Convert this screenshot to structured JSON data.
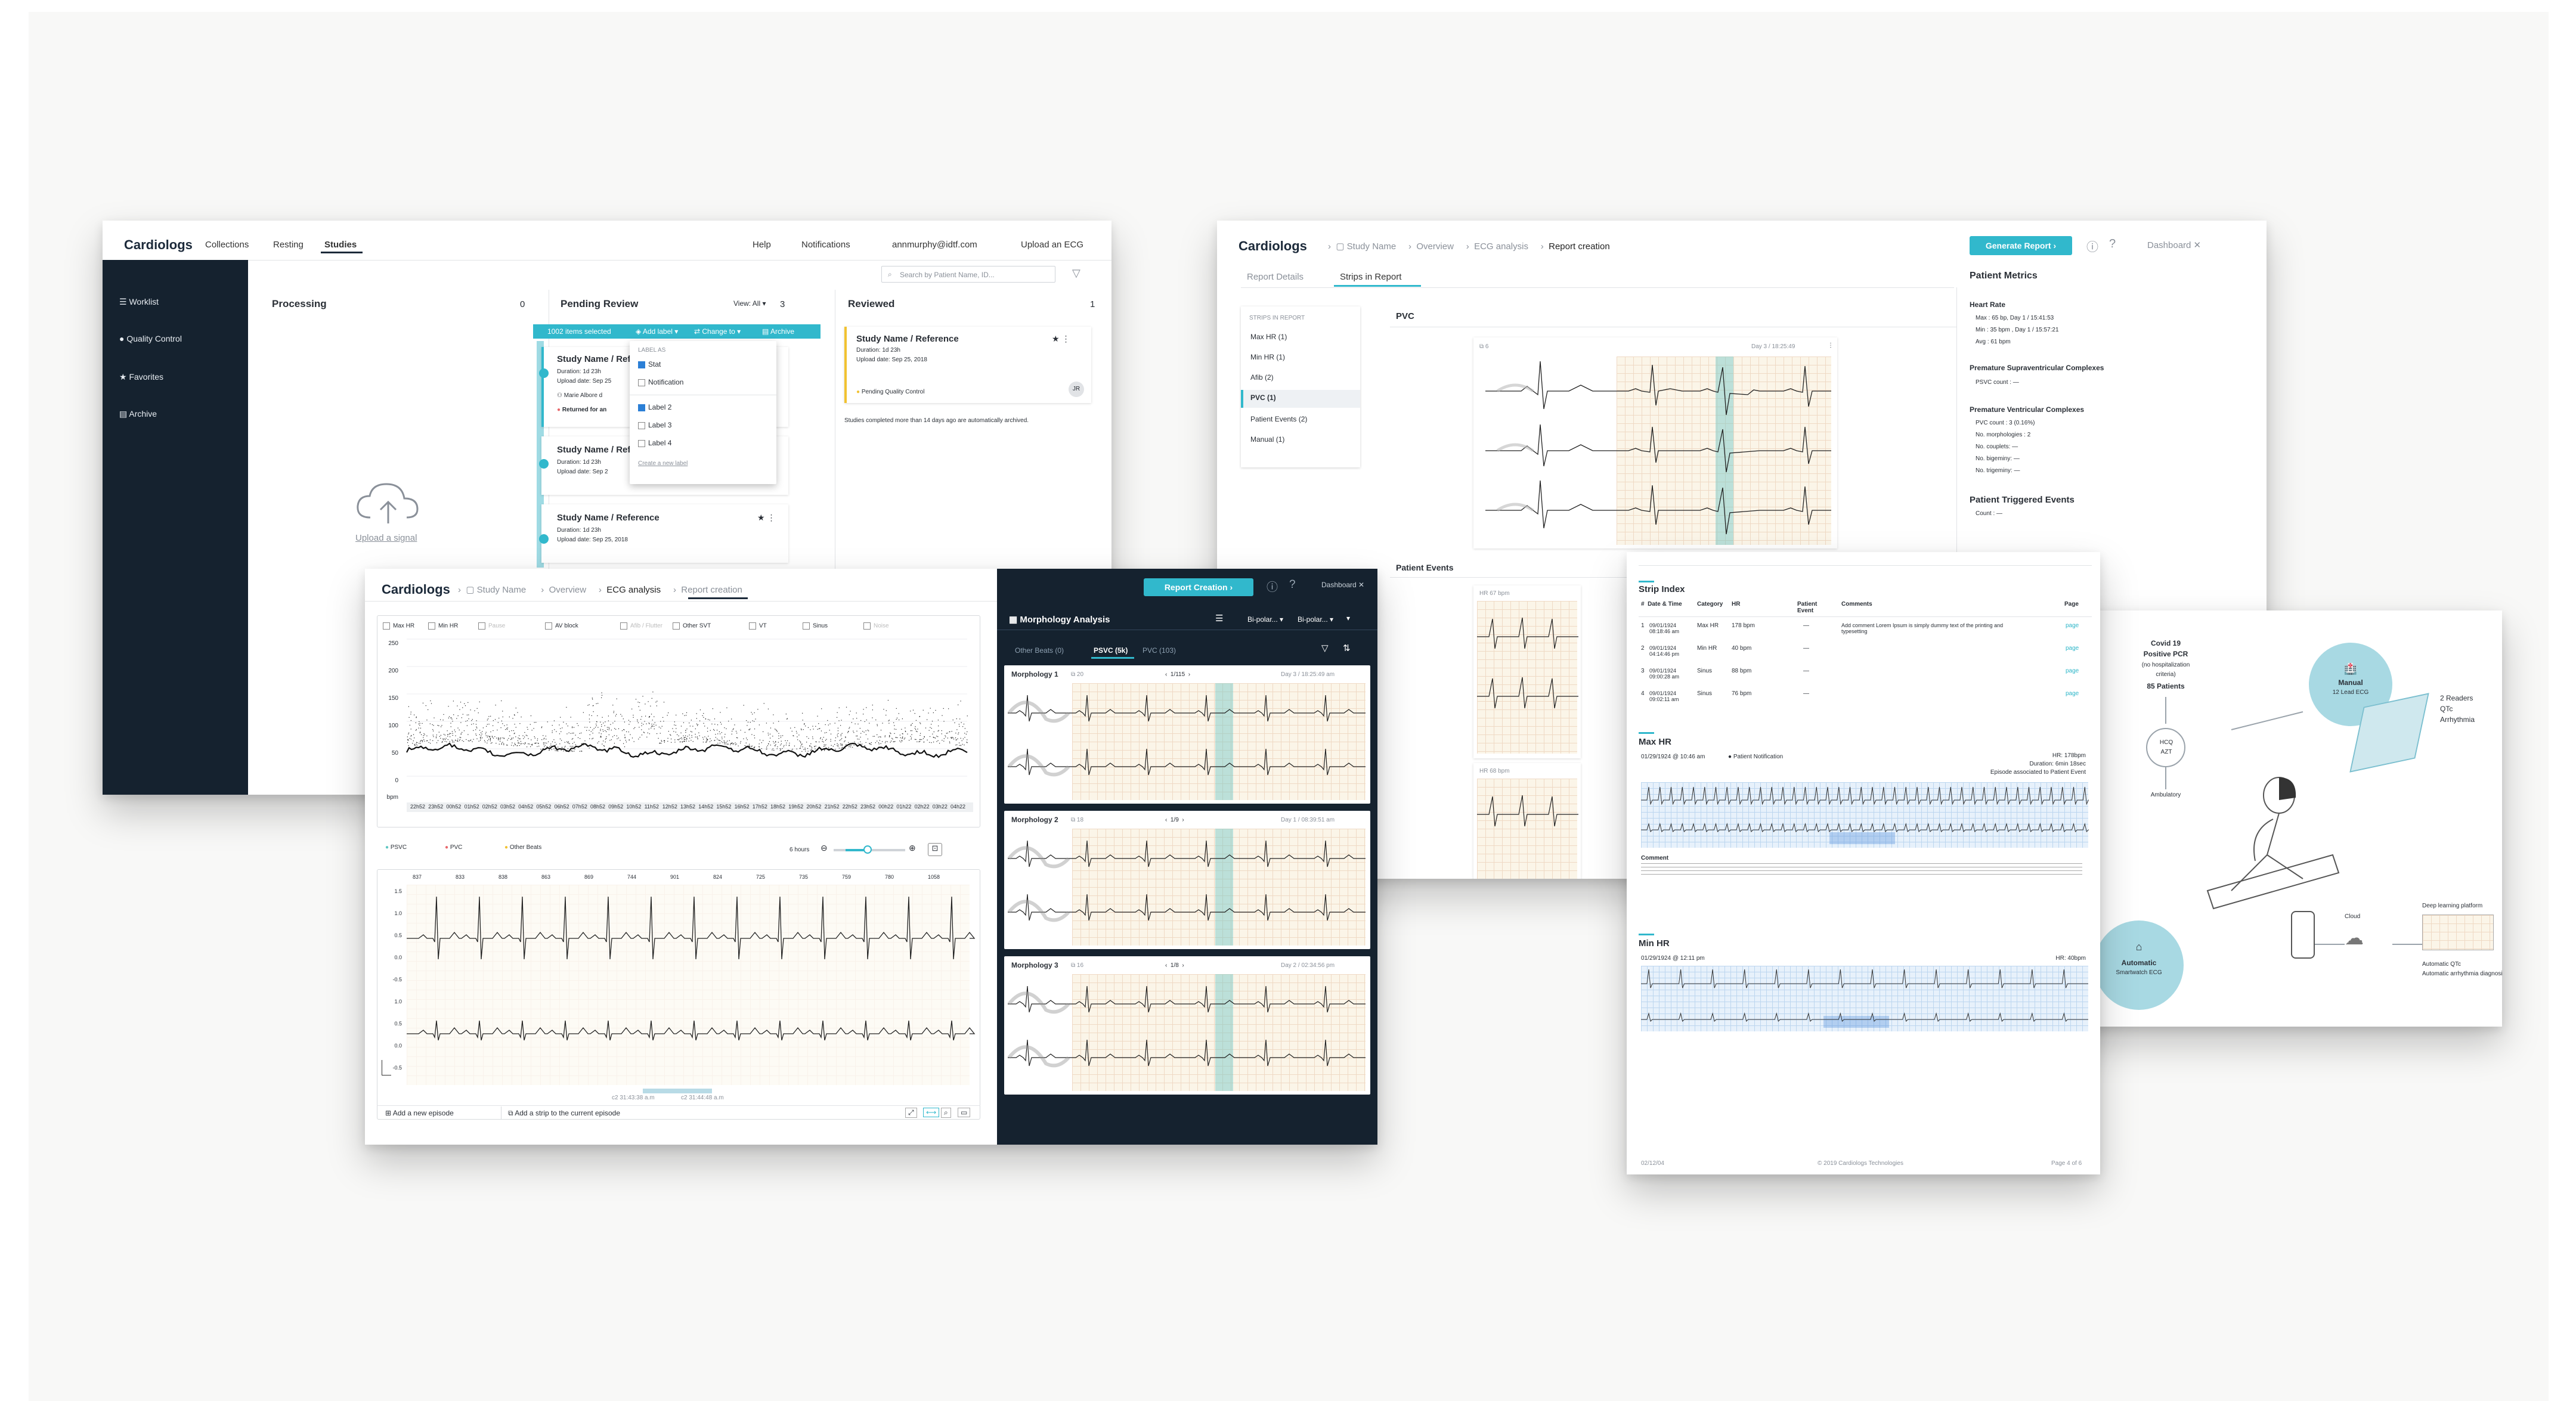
{
  "w1": {
    "brand": "Cardiologs",
    "nav": [
      "Collections",
      "Resting",
      "Studies"
    ],
    "right_nav": [
      "Help",
      "Notifications",
      "annmurphy@idtf.com",
      "Upload an ECG"
    ],
    "search_placeholder": "Search by Patient Name, ID...",
    "sidebar": [
      "Worklist",
      "Quality Control",
      "Favorites",
      "Archive"
    ],
    "processing": {
      "title": "Processing",
      "count": "0",
      "upload": "Upload a signal"
    },
    "pending": {
      "title": "Pending Review",
      "view": "View: All",
      "count": "3",
      "selected": "1002 items selected",
      "actions": [
        "Add label",
        "Change to",
        "Archive"
      ]
    },
    "pending_cards": [
      {
        "name": "Study Name / Reference",
        "dur": "Duration: 1d 23h",
        "up": "Upload date: Sep 25",
        "who": "Marie Albore d",
        "note": "Returned for an"
      },
      {
        "name": "Study Name / Reference",
        "dur": "Duration: 1d 23h",
        "up": "Upload date: Sep 2"
      },
      {
        "name": "Study Name / Reference",
        "dur": "Duration: 1d 23h",
        "up": "Upload date: Sep 25, 2018"
      }
    ],
    "label_menu": {
      "header": "LABEL AS",
      "items": [
        "Stat",
        "Notification",
        "Label 2",
        "Label 3",
        "Label 4"
      ],
      "create": "Create a new label"
    },
    "reviewed": {
      "title": "Reviewed",
      "count": "1",
      "name": "Study Name / Reference",
      "dur": "Duration: 1d 23h",
      "up": "Upload date: Sep 25, 2018",
      "status": "Pending Quality Control",
      "note": "Studies completed more than 14 days ago are automatically archived.",
      "avatar": "JR"
    }
  },
  "w2": {
    "brand": "Cardiologs",
    "crumbs": [
      "Study Name",
      "Overview",
      "ECG analysis",
      "Report creation"
    ],
    "generate": "Generate Report",
    "dashboard": "Dashboard",
    "tabs": [
      "Report Details",
      "Strips in Report"
    ],
    "strips_header": "STRIPS IN REPORT",
    "strips": [
      "Max HR (1)",
      "Min HR (1)",
      "Afib (2)",
      "PVC (1)",
      "Patient Events (2)",
      "Manual (1)"
    ],
    "pvc_title": "PVC",
    "strip_count": "6",
    "strip_time": "Day 3 / 18:25:49",
    "patient_events": "Patient Events",
    "hr_labels": [
      "HR 67 bpm",
      "HR 68 bpm"
    ],
    "metrics": {
      "title": "Patient Metrics",
      "hr_title": "Heart Rate",
      "hr_lines": [
        "Max : 65 bp, Day 1 / 15:41:53",
        "Min : 35 bpm , Day 1 / 15:57:21",
        "Avg : 61 bpm"
      ],
      "psvc_title": "Premature Supraventricular Complexes",
      "psvc_lines": [
        "PSVC count : —"
      ],
      "pvc_title": "Premature Ventricular Complexes",
      "pvc_lines": [
        "PVC count : 3 (0.16%)",
        "No. morphologies : 2",
        "No. couplets: —",
        "No. bigeminy: —",
        "No. trigeminy: —"
      ],
      "pte_title": "Patient Triggered Events",
      "pte_lines": [
        "Count : —"
      ]
    }
  },
  "w3": {
    "brand": "Cardiologs",
    "crumbs": [
      "Study Name",
      "Overview",
      "ECG analysis",
      "Report creation"
    ],
    "report_btn": "Report Creation",
    "dashboard": "Dashboard",
    "filters": [
      "Max HR",
      "Min HR",
      "Pause",
      "AV block",
      "Afib / Flutter",
      "Other SVT",
      "VT",
      "Sinus",
      "Noise"
    ],
    "y_ticks": [
      "250",
      "200",
      "150",
      "100",
      "50",
      "0"
    ],
    "y_unit": "bpm",
    "x_ticks": [
      "22h52",
      "23h52",
      "00h52",
      "01h52",
      "02h52",
      "03h52",
      "04h52",
      "05h52",
      "06h52",
      "07h52",
      "08h52",
      "09h52",
      "10h52",
      "11h52",
      "12h52",
      "13h52",
      "14h52",
      "15h52",
      "16h52",
      "17h52",
      "18h52",
      "19h52",
      "20h52",
      "21h52",
      "22h52",
      "23h52",
      "00h22",
      "01h22",
      "02h22",
      "03h22",
      "04h22"
    ],
    "legend": [
      "PSVC",
      "PVC",
      "Other Beats"
    ],
    "legend_colors": [
      "#5ec7c2",
      "#e8676b",
      "#f1c232"
    ],
    "zoom": "6 hours",
    "rr_values": [
      "837",
      "833",
      "838",
      "863",
      "869",
      "744",
      "901",
      "824",
      "725",
      "735",
      "759",
      "780",
      "1058"
    ],
    "strip_ticks": [
      "1.5",
      "1.0",
      "0.5",
      "0.0",
      "-0.5",
      "1.0",
      "0.5",
      "0.0",
      "-0.5"
    ],
    "strip_times": [
      "c2 31:43:38 a.m",
      "c2 31:44:48 a.m"
    ],
    "btn_add_episode": "Add a new episode",
    "btn_add_strip": "Add a strip to the current episode",
    "morph_title": "Morphology Analysis",
    "leads": [
      "Bi-polar...",
      "Bi-polar..."
    ],
    "morph_tabs": [
      "Other Beats (0)",
      "PSVC (5k)",
      "PVC (103)"
    ],
    "morphs": [
      {
        "name": "Morphology 1",
        "count": "20",
        "nav": "1/115",
        "time": "Day 3 / 18:25:49 am"
      },
      {
        "name": "Morphology 2",
        "count": "18",
        "nav": "1/9",
        "time": "Day 1 / 08:39:51 am"
      },
      {
        "name": "Morphology 3",
        "count": "16",
        "nav": "1/8",
        "time": "Day 2 / 02:34:56 pm"
      }
    ]
  },
  "w4": {
    "strip_index": "Strip Index",
    "cols": [
      "Date & Time",
      "Category",
      "HR",
      "Patient Event",
      "Comments",
      "Page"
    ],
    "rows": [
      {
        "n": "1",
        "dt": "09/01/1924 08:18:46 am",
        "cat": "Max HR",
        "hr": "178 bpm",
        "ev": "—",
        "com": "Add comment Lorem Ipsum is simply dummy text of the printing and typesetting",
        "pg": "page"
      },
      {
        "n": "2",
        "dt": "09/01/1924 04:14:46 pm",
        "cat": "Min HR",
        "hr": "40 bpm",
        "ev": "—",
        "com": "",
        "pg": "page"
      },
      {
        "n": "3",
        "dt": "09/01/1924 09:00:28 am",
        "cat": "Sinus",
        "hr": "88 bpm",
        "ev": "—",
        "com": "",
        "pg": "page"
      },
      {
        "n": "4",
        "dt": "09/01/1924 09:02:11 am",
        "cat": "Sinus",
        "hr": "76 bpm",
        "ev": "—",
        "com": "",
        "pg": "page"
      }
    ],
    "max_hr_title": "Max HR",
    "max_hr_dt": "01/29/1924 @ 10:46 am",
    "max_hr_flag": "Patient Notification",
    "max_hr_meta": [
      "HR: 178bpm",
      "Duration: 6min 18sec",
      "Episode associated to Patient Event"
    ],
    "comment_title": "Comment",
    "min_hr_title": "Min HR",
    "min_hr_dt": "01/29/1924 @ 12:11 pm",
    "min_hr_meta": "HR: 40bpm",
    "footer": [
      "02/12/04",
      "© 2019 Cardiologs Technologies",
      "Page 4 of 6"
    ]
  },
  "w5": {
    "cohort": [
      "Covid 19",
      "Positive PCR",
      "(no hospitalization",
      "criteria)",
      "85 Patients"
    ],
    "drugs": [
      "HCQ",
      "AZT"
    ],
    "ambulatory": "Ambulatory",
    "manual": [
      "Manual",
      "12 Lead ECG"
    ],
    "readers": [
      "2 Readers",
      "QTc",
      "Arrhythmia"
    ],
    "auto": [
      "Automatic",
      "Smartwatch ECG"
    ],
    "cloud": "Cloud",
    "deep": "Deep learning platform",
    "results": [
      "Automatic QTc",
      "Automatic arrhythmia diagnosis"
    ]
  }
}
